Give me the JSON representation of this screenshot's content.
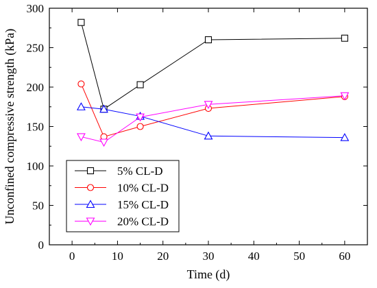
{
  "chart_data": {
    "type": "line",
    "title": "",
    "xlabel": "Time (d)",
    "ylabel": "Unconfined compressive strength (kPa)",
    "xlim": [
      -5,
      65
    ],
    "ylim": [
      0,
      300
    ],
    "xticks": [
      0,
      10,
      20,
      30,
      40,
      50,
      60
    ],
    "yticks": [
      0,
      50,
      100,
      150,
      200,
      250,
      300
    ],
    "grid": false,
    "legend_position": "bottom-left",
    "series": [
      {
        "name": "5% CL-D",
        "color": "#000000",
        "marker": "square",
        "x": [
          2,
          7,
          15,
          30,
          60
        ],
        "y": [
          282,
          172,
          203,
          260,
          262
        ]
      },
      {
        "name": "10% CL-D",
        "color": "#ff0000",
        "marker": "circle",
        "x": [
          2,
          7,
          15,
          30,
          60
        ],
        "y": [
          204,
          137,
          150,
          173,
          188
        ]
      },
      {
        "name": "15% CL-D",
        "color": "#0000ff",
        "marker": "triangle-up",
        "x": [
          2,
          7,
          15,
          30,
          60
        ],
        "y": [
          175,
          172,
          163,
          138,
          136
        ]
      },
      {
        "name": "20% CL-D",
        "color": "#ff00ff",
        "marker": "triangle-down",
        "x": [
          2,
          7,
          15,
          30,
          60
        ],
        "y": [
          137,
          130,
          162,
          178,
          189
        ]
      }
    ]
  }
}
